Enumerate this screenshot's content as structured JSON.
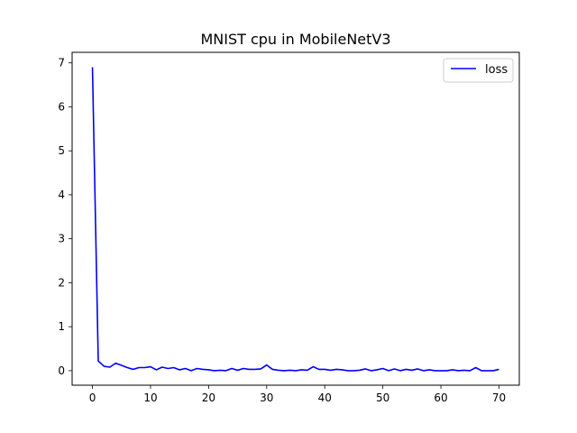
{
  "chart_data": {
    "type": "line",
    "title": "MNIST cpu in MobileNetV3",
    "xlabel": "",
    "ylabel": "",
    "xlim": [
      -3.5,
      73.5
    ],
    "ylim": [
      -0.33,
      7.24
    ],
    "xticks": [
      0,
      10,
      20,
      30,
      40,
      50,
      60,
      70
    ],
    "yticks": [
      0,
      1,
      2,
      3,
      4,
      5,
      6,
      7
    ],
    "grid": false,
    "legend": {
      "position": "top-right"
    },
    "series": [
      {
        "name": "loss",
        "color": "#0000ff",
        "x": [
          0,
          1,
          2,
          3,
          4,
          5,
          6,
          7,
          8,
          9,
          10,
          11,
          12,
          13,
          14,
          15,
          16,
          17,
          18,
          19,
          20,
          21,
          22,
          23,
          24,
          25,
          26,
          27,
          28,
          29,
          30,
          31,
          32,
          33,
          34,
          35,
          36,
          37,
          38,
          39,
          40,
          41,
          42,
          43,
          44,
          45,
          46,
          47,
          48,
          49,
          50,
          51,
          52,
          53,
          54,
          55,
          56,
          57,
          58,
          59,
          60,
          61,
          62,
          63,
          64,
          65,
          66,
          67,
          68,
          69,
          70
        ],
        "values": [
          6.9,
          0.22,
          0.1,
          0.08,
          0.17,
          0.12,
          0.07,
          0.03,
          0.07,
          0.07,
          0.09,
          0.02,
          0.08,
          0.05,
          0.07,
          0.02,
          0.05,
          0.0,
          0.05,
          0.03,
          0.02,
          0.0,
          0.01,
          0.0,
          0.05,
          0.01,
          0.05,
          0.03,
          0.03,
          0.04,
          0.13,
          0.03,
          0.01,
          0.0,
          0.01,
          0.0,
          0.02,
          0.01,
          0.09,
          0.03,
          0.03,
          0.01,
          0.03,
          0.02,
          0.0,
          0.0,
          0.01,
          0.04,
          0.0,
          0.02,
          0.05,
          0.0,
          0.04,
          0.0,
          0.03,
          0.01,
          0.04,
          0.0,
          0.02,
          0.0,
          0.0,
          0.0,
          0.02,
          0.0,
          0.01,
          0.0,
          0.07,
          0.0,
          0.0,
          0.0,
          0.03
        ]
      }
    ]
  }
}
